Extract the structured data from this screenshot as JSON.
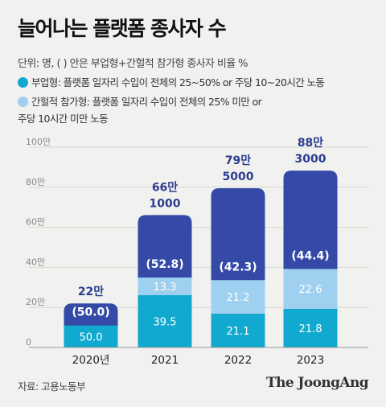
{
  "title": "늘어나는 플랫폼 종사자 수",
  "unit_note": "단위: 명, ( ) 안은 부업형+간헐적 참가형 종사자 비율 %",
  "legend": [
    {
      "label": "부업형: 플랫폼 일자리 수입이 전체의 25~50% or 주당 10~20시간 노동",
      "color": "#11a9cf"
    },
    {
      "label": "간헐적 참가형: 플랫폼 일자리 수입이 전체의 25% 미만 or",
      "label_cont": "주당 10시간 미만 노동",
      "color": "#9fd0f0"
    }
  ],
  "colors": {
    "total": "#344aa6",
    "side_job": "#11a9cf",
    "intermittent": "#9fd0f0"
  },
  "chart_data": {
    "type": "bar",
    "categories": [
      "2020년",
      "2021",
      "2022",
      "2023"
    ],
    "yticks": [
      "0",
      "20만",
      "40만",
      "60만",
      "80만",
      "100만"
    ],
    "ylim": [
      0,
      1000000
    ],
    "grid": true,
    "totals": [
      220000,
      661000,
      795000,
      883000
    ],
    "total_labels": [
      {
        "line1": "22만",
        "line2": ""
      },
      {
        "line1": "66만",
        "line2": "1000"
      },
      {
        "line1": "79만",
        "line2": "5000"
      },
      {
        "line1": "88만",
        "line2": "3000"
      }
    ],
    "series": [
      {
        "name": "부업형",
        "values": [
          50.0,
          39.5,
          21.1,
          21.8
        ],
        "labels": [
          "50.0",
          "39.5",
          "21.1",
          "21.8"
        ]
      },
      {
        "name": "간헐적 참가형",
        "values": [
          0,
          13.3,
          21.2,
          22.6
        ],
        "labels": [
          "",
          "13.3",
          "21.2",
          "22.6"
        ]
      }
    ],
    "ratio_labels": [
      "(50.0)",
      "(52.8)",
      "(42.3)",
      "(44.4)"
    ]
  },
  "source": "자료: 고용노동부",
  "brand": "The JoongAng"
}
